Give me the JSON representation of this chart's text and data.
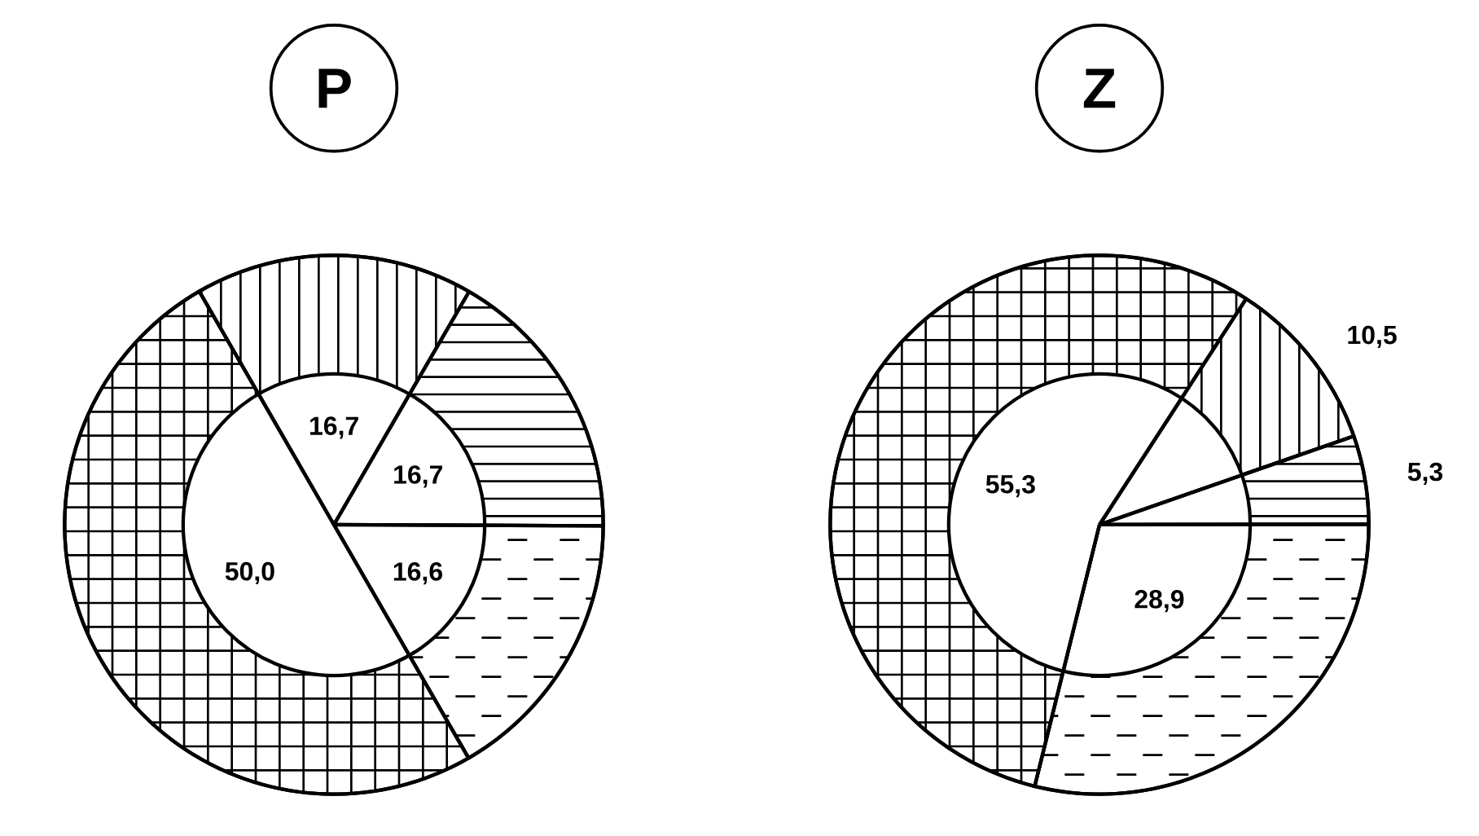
{
  "chart_data": [
    {
      "type": "pie",
      "title": "P",
      "categories": [
        null,
        null,
        null,
        null
      ],
      "values": [
        16.7,
        16.7,
        16.6,
        50.0
      ],
      "value_labels": [
        "16,7",
        "16,7",
        "16,6",
        "50,0"
      ],
      "colors": [
        "#000000",
        "#000000",
        "#000000",
        "#000000"
      ]
    },
    {
      "type": "pie",
      "title": "Z",
      "categories": [
        null,
        null,
        null,
        null
      ],
      "values": [
        10.5,
        5.3,
        28.9,
        55.3
      ],
      "value_labels": [
        "10,5",
        "5,3",
        "28,9",
        "55,3"
      ],
      "colors": [
        "#000000",
        "#000000",
        "#000000",
        "#000000"
      ]
    }
  ]
}
